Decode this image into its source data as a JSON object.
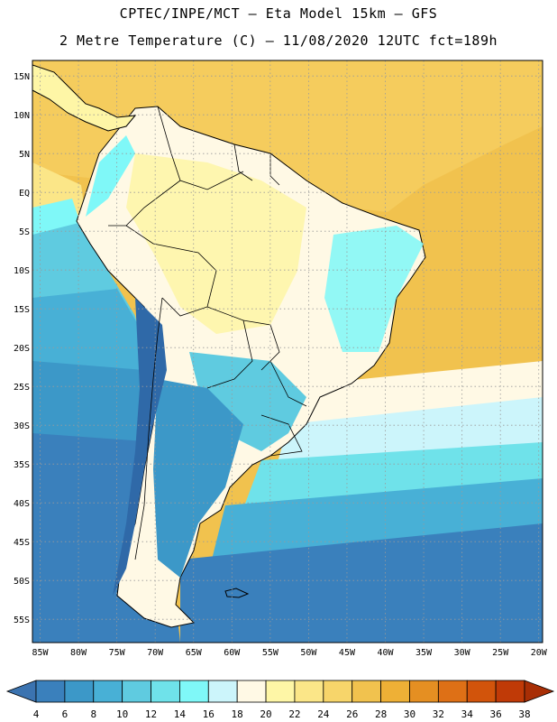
{
  "header": {
    "title_line1": "CPTEC/INPE/MCT –  Eta Model 15km – GFS",
    "title_line2": "2 Metre Temperature (C) – 11/08/2020 12UTC fct=189h"
  },
  "map": {
    "lon_labels": [
      "85W",
      "80W",
      "75W",
      "70W",
      "65W",
      "60W",
      "55W",
      "50W",
      "45W",
      "40W",
      "35W",
      "30W",
      "25W",
      "20W"
    ],
    "lat_labels": [
      "15N",
      "10N",
      "5N",
      "EQ",
      "5S",
      "10S",
      "15S",
      "20S",
      "25S",
      "30S",
      "35S",
      "40S",
      "45S",
      "50S",
      "55S"
    ],
    "lon_range": [
      -86,
      -19.5
    ],
    "lat_range": [
      17,
      -58
    ],
    "gridlines": "dotted"
  },
  "colorbar": {
    "labels": [
      "4",
      "6",
      "8",
      "10",
      "12",
      "14",
      "16",
      "18",
      "20",
      "22",
      "24",
      "26",
      "28",
      "30",
      "32",
      "34",
      "36",
      "38"
    ],
    "colors": [
      "#3b73b0",
      "#3a80bc",
      "#3c98c8",
      "#48b0d6",
      "#5fcbe0",
      "#6fe2ea",
      "#7ff8f8",
      "#ccf5fb",
      "#fff9e5",
      "#fef6a6",
      "#fbe688",
      "#f7d56a",
      "#f1c24e",
      "#eeb036",
      "#e58f22",
      "#de7016",
      "#d2540b",
      "#c03a07",
      "#a82e05"
    ]
  },
  "icons": {
    "left_arrow": "colorbar-left-arrow-icon",
    "right_arrow": "colorbar-right-arrow-icon"
  }
}
